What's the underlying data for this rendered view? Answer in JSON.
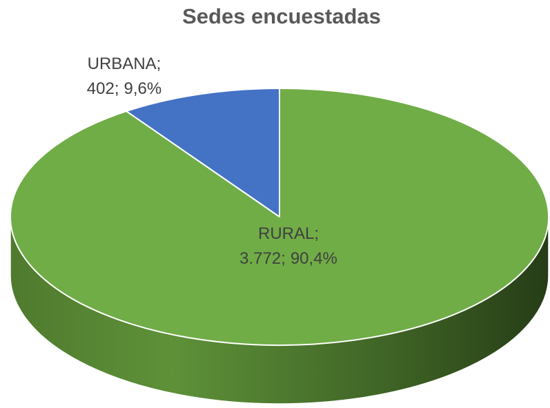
{
  "chart_data": {
    "type": "pie",
    "title": "Sedes encuestadas",
    "categories": [
      "RURAL",
      "URBANA"
    ],
    "values": [
      3772,
      402
    ],
    "value_labels": [
      "3.772",
      "402"
    ],
    "percents": [
      90.4,
      9.6
    ],
    "percent_labels": [
      "90,4%",
      "9,6%"
    ],
    "label_separator": ";",
    "colors": [
      "#70ad47",
      "#4472c4"
    ]
  }
}
